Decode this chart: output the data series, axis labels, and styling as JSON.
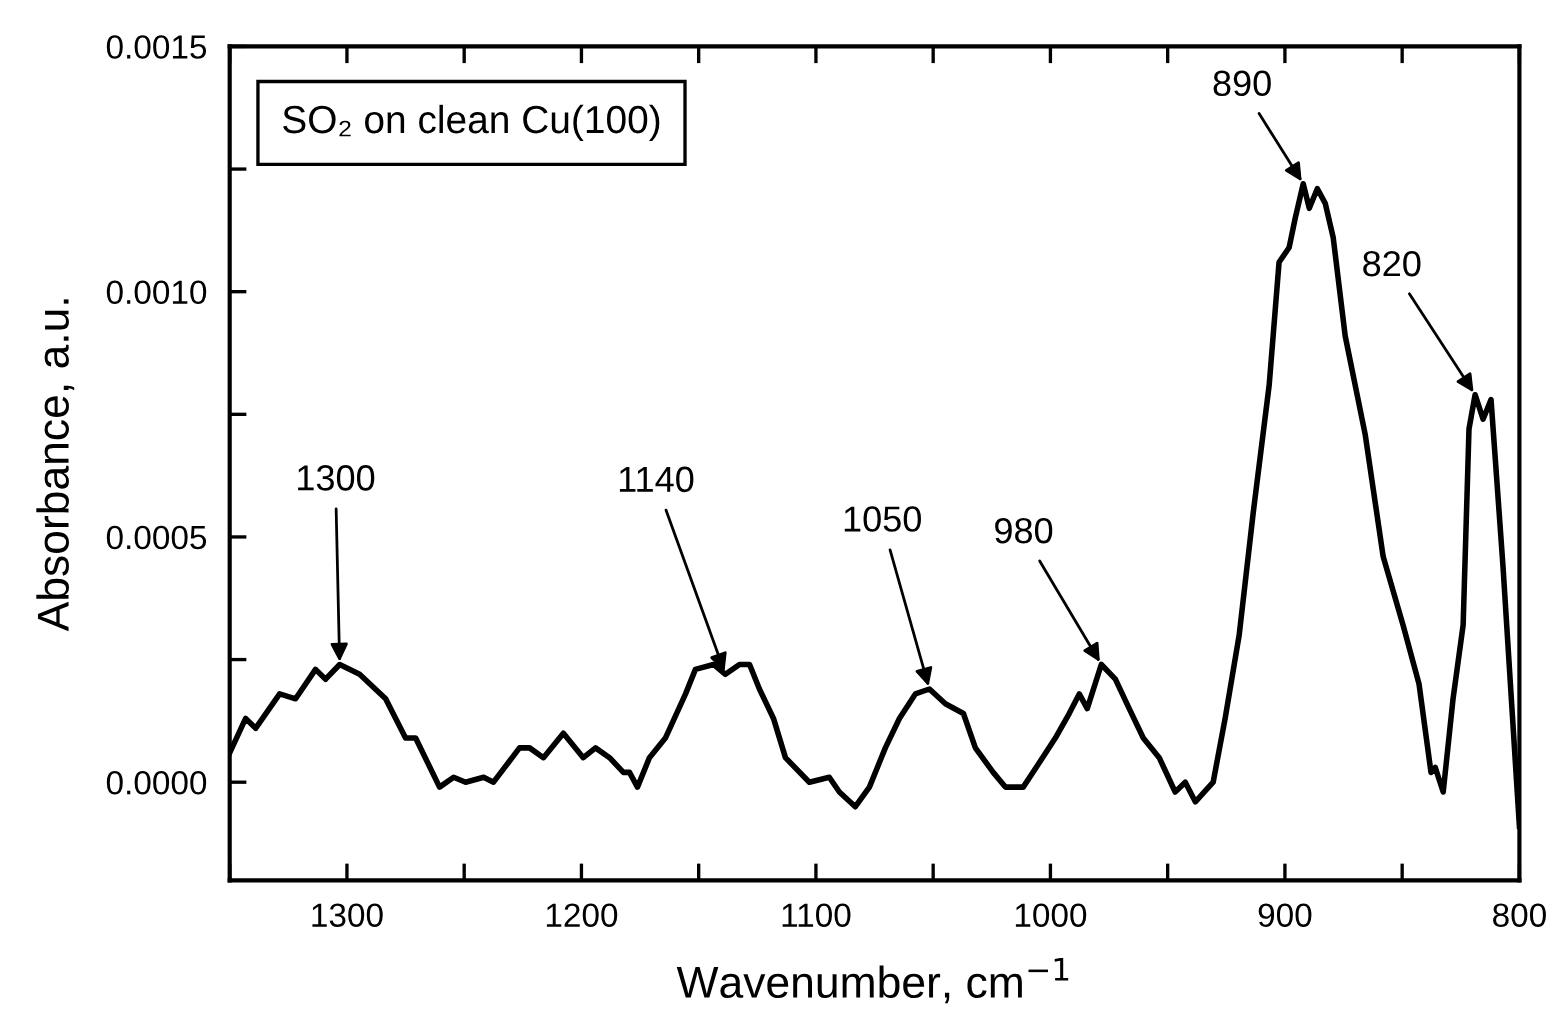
{
  "chart_data": {
    "type": "line",
    "xlabel": "Wavenumber, cm$^{−1}$",
    "ylabel": "Absorbance, a.u.",
    "x": [
      1350,
      1343.2,
      1338.9,
      1328.7,
      1321.9,
      1313.4,
      1309.1,
      1303.1,
      1294.6,
      1283.5,
      1275.0,
      1270.7,
      1260.5,
      1254.5,
      1249.4,
      1241.7,
      1237.5,
      1226.4,
      1222.1,
      1216.2,
      1207.7,
      1199.2,
      1194.0,
      1188.0,
      1182.1,
      1179.5,
      1176.1,
      1171.0,
      1164.2,
      1155.6,
      1151.4,
      1143.7,
      1138.6,
      1132.6,
      1128.3,
      1124.1,
      1118.1,
      1113.0,
      1102.8,
      1094.3,
      1090.0,
      1083.2,
      1077.2,
      1070.4,
      1064.4,
      1057.6,
      1051.6,
      1044.8,
      1037.1,
      1032.0,
      1024.4,
      1019.2,
      1011.6,
      1004.7,
      997.9,
      992.0,
      987.7,
      984.3,
      978.3,
      972.3,
      966.4,
      960.4,
      953.6,
      946.8,
      942.5,
      938.2,
      930.6,
      925.5,
      919.5,
      913.5,
      906.7,
      902.5,
      898.2,
      895.6,
      892.2,
      889.6,
      886.2,
      882.8,
      879.4,
      874.3,
      865.8,
      858.1,
      849.6,
      842.8,
      837.7,
      835.9,
      832.5,
      828.3,
      824.0,
      821.5,
      818.9,
      815.5,
      812.1,
      807.0,
      800.0
    ],
    "series": [
      {
        "color": "#000000",
        "values": [
          6e-05,
          0.00013,
          0.00011,
          0.00018,
          0.00017,
          0.00023,
          0.00021,
          0.00024,
          0.00022,
          0.00017,
          9e-05,
          9e-05,
          -1e-05,
          1e-05,
          0.0,
          1e-05,
          0.0,
          7e-05,
          7e-05,
          5e-05,
          0.0001,
          5e-05,
          7e-05,
          5e-05,
          2e-05,
          2e-05,
          -1e-05,
          5e-05,
          9e-05,
          0.00018,
          0.00023,
          0.00024,
          0.00022,
          0.00024,
          0.00024,
          0.00019,
          0.00013,
          5e-05,
          0.0,
          1e-05,
          -2e-05,
          -5e-05,
          -1e-05,
          7e-05,
          0.00013,
          0.00018,
          0.00019,
          0.00016,
          0.00014,
          7e-05,
          2e-05,
          -1e-05,
          -1e-05,
          4e-05,
          9e-05,
          0.00014,
          0.00018,
          0.00015,
          0.00024,
          0.00021,
          0.00015,
          9e-05,
          5e-05,
          -2e-05,
          0.0,
          -4e-05,
          0.0,
          0.00013,
          0.0003,
          0.00055,
          0.00081,
          0.00106,
          0.00109,
          0.00115,
          0.00122,
          0.00117,
          0.00121,
          0.00118,
          0.00111,
          0.00091,
          0.00071,
          0.00046,
          0.00032,
          0.0002,
          2e-05,
          3e-05,
          -2e-05,
          0.00017,
          0.00032,
          0.00072,
          0.00079,
          0.00074,
          0.00078,
          0.00044,
          -9e-05
        ]
      }
    ],
    "xlim": [
      1350,
      800
    ],
    "ylim": [
      -0.0002,
      0.0015
    ],
    "xticks": [
      {
        "value": 1350,
        "label": null
      },
      1300,
      {
        "value": 1250,
        "label": null
      },
      1200,
      {
        "value": 1150,
        "label": null
      },
      1100,
      {
        "value": 1050,
        "label": null
      },
      1000,
      {
        "value": 950,
        "label": null
      },
      900,
      {
        "value": 850,
        "label": null
      },
      800
    ],
    "yticks": [
      {
        "value": 0.0,
        "label": "0.0000"
      },
      {
        "value": 0.00025,
        "label": null
      },
      {
        "value": 0.0005,
        "label": "0.0005"
      },
      {
        "value": 0.00075,
        "label": null
      },
      {
        "value": 0.001,
        "label": "0.0010"
      },
      {
        "value": 0.00125,
        "label": null
      },
      {
        "value": 0.0015,
        "label": "0.0015"
      }
    ],
    "grid": false,
    "legend": false,
    "marker": "none",
    "line_style": "solid",
    "annotations": [
      "SO₂ on clean Cu(100)",
      {
        "text": "1300",
        "x": 1303.1,
        "y": 0.00024
      },
      {
        "text": "1140",
        "x": 1138.6,
        "y": 0.00022
      },
      {
        "text": "1050",
        "x": 1051.6,
        "y": 0.00019
      },
      {
        "text": "980",
        "x": 978.3,
        "y": 0.00024
      },
      {
        "text": "890",
        "x": 892.2,
        "y": 0.00122
      },
      {
        "text": "820",
        "x": 818.9,
        "y": 0.00079
      }
    ]
  }
}
